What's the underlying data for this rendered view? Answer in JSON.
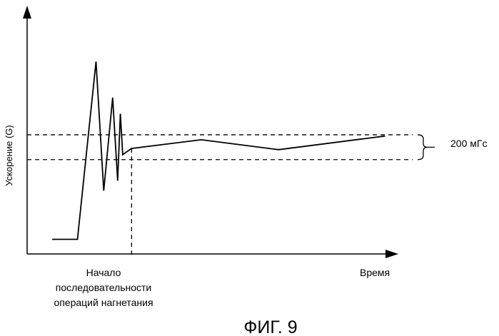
{
  "figure": {
    "caption": "ФИГ. 9"
  },
  "chart_data": {
    "type": "line",
    "title": "",
    "ylabel": "Ускорение (G)",
    "xlabel": "Время",
    "x_start_label": [
      "Начало",
      "последовательности",
      "операций нагнетания"
    ],
    "band_label": "200 мГс",
    "grid": false,
    "legend": "none",
    "xlim": [
      0,
      100
    ],
    "ylim": [
      0,
      100
    ],
    "band": [
      38,
      48
    ],
    "marker_x": 27,
    "series": [
      {
        "x": [
          6.5,
          13.0,
          17.8,
          19.8,
          22.1,
          23.4,
          24.1,
          24.7,
          25.6,
          27.0,
          45.0,
          65.0,
          92.5
        ],
        "y": [
          5.9,
          5.9,
          77.5,
          25.5,
          63.0,
          29.5,
          56.5,
          40.0,
          41.0,
          42.5,
          46.0,
          42.0,
          47.5
        ]
      }
    ]
  }
}
